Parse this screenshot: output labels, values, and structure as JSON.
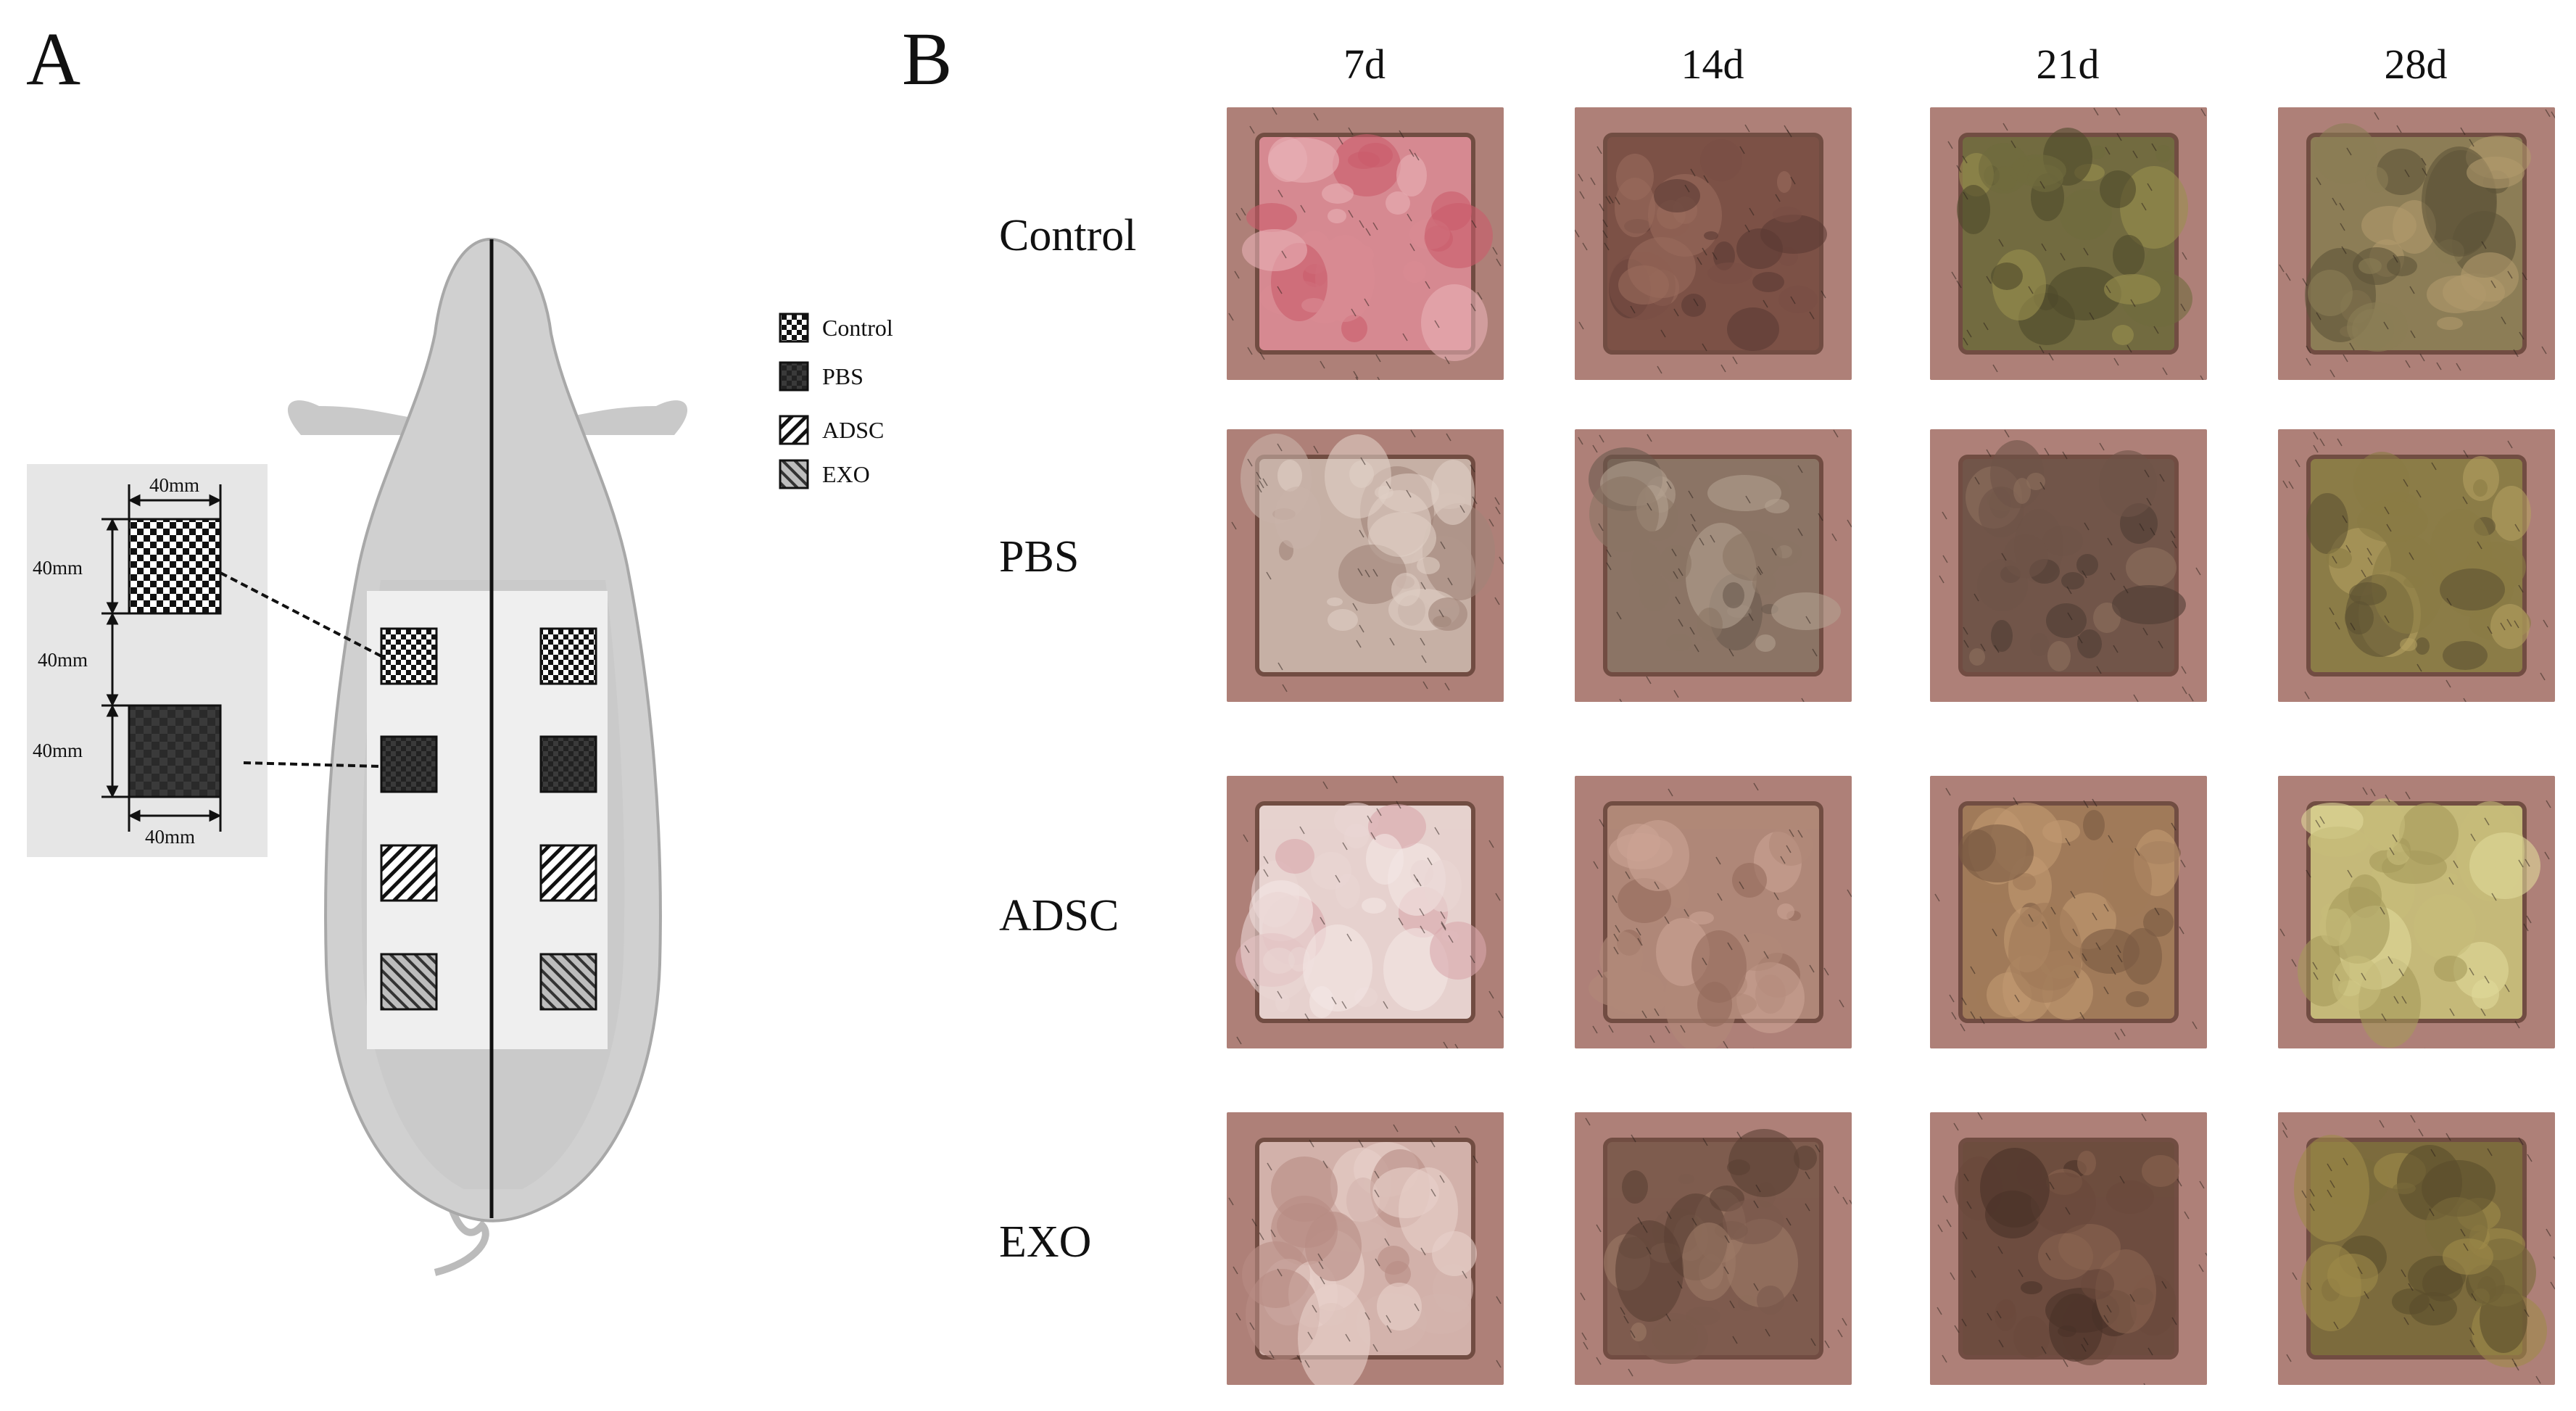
{
  "panels": {
    "a": "A",
    "b": "B"
  },
  "legend": [
    {
      "label": "Control",
      "pattern": "checker"
    },
    {
      "label": "PBS",
      "pattern": "dark"
    },
    {
      "label": "ADSC",
      "pattern": "hatch"
    },
    {
      "label": "EXO",
      "pattern": "hatch-rev"
    }
  ],
  "dimensions": {
    "top_width": "40mm",
    "height_1": "40mm",
    "gap": "40mm",
    "height_2": "40mm",
    "bottom_width": "40mm"
  },
  "timepoints": [
    "7d",
    "14d",
    "21d",
    "28d"
  ],
  "groups": [
    "Control",
    "PBS",
    "ADSC",
    "EXO"
  ],
  "colors": {
    "pig_body": "#d0d0d0",
    "pig_outline": "#a8a8a8",
    "inset_bg": "#e6e6e6",
    "wound_zone": "#f0f0f0"
  }
}
